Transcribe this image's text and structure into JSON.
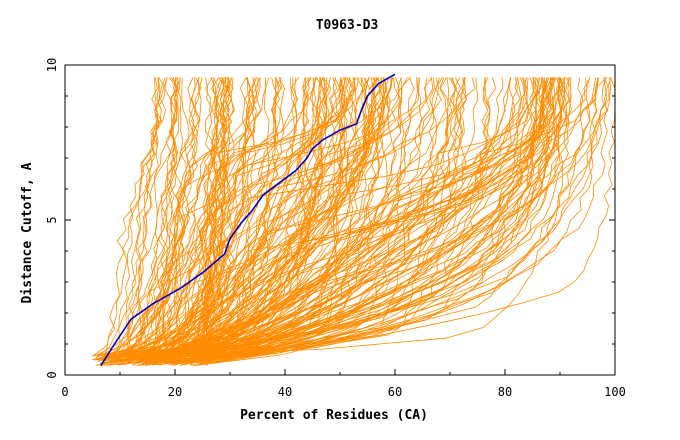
{
  "chart_data": {
    "type": "line",
    "title": "T0963-D3",
    "xlabel": "Percent of Residues (CA)",
    "ylabel": "Distance Cutoff, A",
    "xlim": [
      0,
      100
    ],
    "ylim": [
      0,
      10
    ],
    "x_ticks": [
      0,
      20,
      40,
      60,
      80,
      100
    ],
    "y_ticks": [
      0,
      5,
      10
    ],
    "grid": false,
    "legend": "none",
    "background_series_color": "#ff8c00",
    "highlight_series_color": "#0000cd",
    "highlight_series": {
      "x": [
        6.5,
        9,
        12,
        16,
        21,
        25,
        29,
        30,
        32,
        34,
        36,
        39,
        42,
        44,
        45,
        47,
        50,
        53,
        54,
        55,
        57,
        60
      ],
      "y": [
        0.3,
        1.0,
        1.8,
        2.3,
        2.8,
        3.3,
        3.9,
        4.4,
        4.9,
        5.3,
        5.8,
        6.2,
        6.6,
        7.0,
        7.3,
        7.6,
        7.9,
        8.1,
        8.6,
        9.0,
        9.4,
        9.7
      ]
    },
    "background_series_count": 240
  }
}
